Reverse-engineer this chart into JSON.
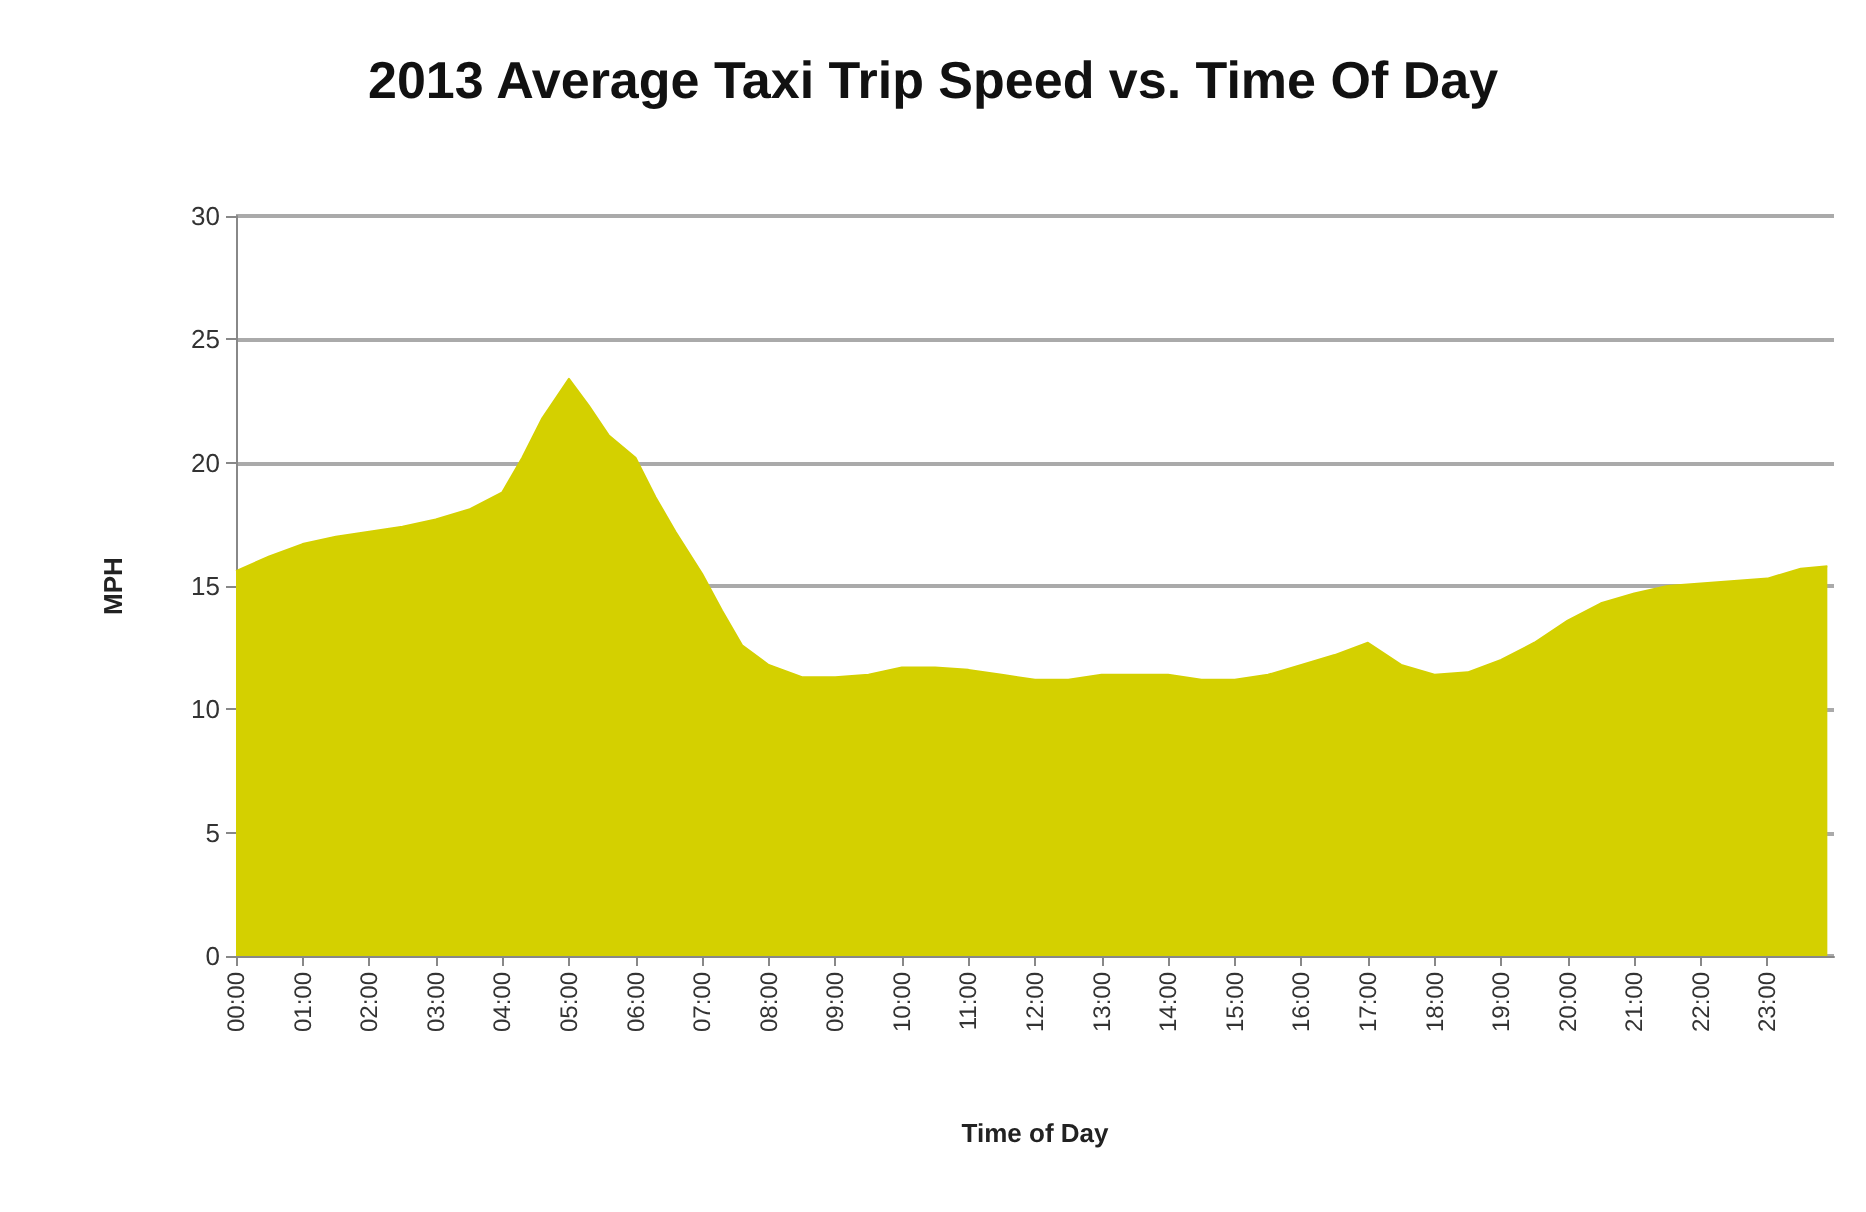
{
  "chart_data": {
    "type": "area",
    "title": "2013 Average Taxi Trip Speed vs. Time Of Day",
    "xlabel": "Time of Day",
    "ylabel": "MPH",
    "x": [
      0,
      0.5,
      1,
      1.5,
      2,
      2.5,
      3,
      3.5,
      4,
      4.3,
      4.6,
      5,
      5.3,
      5.6,
      6,
      6.3,
      6.6,
      7,
      7.3,
      7.6,
      8,
      8.5,
      9,
      9.5,
      10,
      10.5,
      11,
      11.5,
      12,
      12.5,
      13,
      13.5,
      14,
      14.5,
      15,
      15.5,
      16,
      16.5,
      17,
      17.5,
      18,
      18.5,
      19,
      19.5,
      20,
      20.5,
      21,
      21.5,
      22,
      22.5,
      23,
      23.5,
      23.9
    ],
    "series": [
      {
        "color": "#d4d000",
        "values": [
          15.6,
          16.2,
          16.7,
          17.0,
          17.2,
          17.4,
          17.7,
          18.1,
          18.8,
          20.2,
          21.8,
          23.4,
          22.3,
          21.1,
          20.2,
          18.6,
          17.2,
          15.5,
          14.0,
          12.6,
          11.8,
          11.3,
          11.3,
          11.4,
          11.7,
          11.7,
          11.6,
          11.4,
          11.2,
          11.2,
          11.4,
          11.4,
          11.4,
          11.2,
          11.2,
          11.4,
          11.8,
          12.2,
          12.7,
          11.8,
          11.4,
          11.5,
          12.0,
          12.7,
          13.6,
          14.3,
          14.7,
          15.0,
          15.1,
          15.2,
          15.3,
          15.7,
          15.8
        ]
      }
    ],
    "xlim": [
      0,
      24
    ],
    "xticks": [
      {
        "value": 0,
        "label": "00:00"
      },
      {
        "value": 1,
        "label": "01:00"
      },
      {
        "value": 2,
        "label": "02:00"
      },
      {
        "value": 3,
        "label": "03:00"
      },
      {
        "value": 4,
        "label": "04:00"
      },
      {
        "value": 5,
        "label": "05:00"
      },
      {
        "value": 6,
        "label": "06:00"
      },
      {
        "value": 7,
        "label": "07:00"
      },
      {
        "value": 8,
        "label": "08:00"
      },
      {
        "value": 9,
        "label": "09:00"
      },
      {
        "value": 10,
        "label": "10:00"
      },
      {
        "value": 11,
        "label": "11:00"
      },
      {
        "value": 12,
        "label": "12:00"
      },
      {
        "value": 13,
        "label": "13:00"
      },
      {
        "value": 14,
        "label": "14:00"
      },
      {
        "value": 15,
        "label": "15:00"
      },
      {
        "value": 16,
        "label": "16:00"
      },
      {
        "value": 17,
        "label": "17:00"
      },
      {
        "value": 18,
        "label": "18:00"
      },
      {
        "value": 19,
        "label": "19:00"
      },
      {
        "value": 20,
        "label": "20:00"
      },
      {
        "value": 21,
        "label": "21:00"
      },
      {
        "value": 22,
        "label": "22:00"
      },
      {
        "value": 23,
        "label": "23:00"
      }
    ],
    "ylim": [
      0,
      30
    ],
    "yticks": [
      0,
      5,
      10,
      15,
      20,
      25,
      30
    ],
    "grid": "y"
  }
}
